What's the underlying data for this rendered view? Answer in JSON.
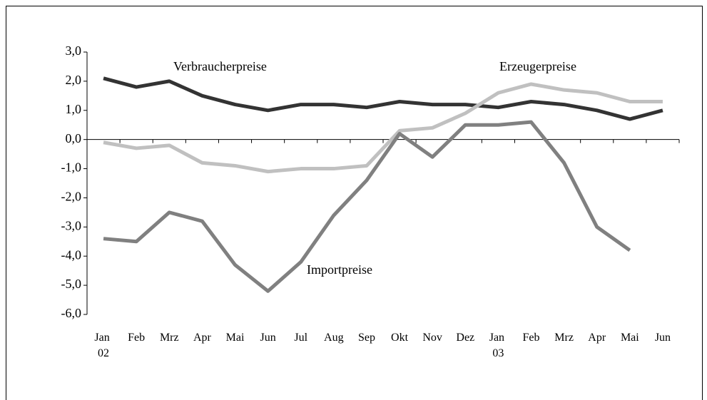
{
  "chart_data": {
    "type": "line",
    "categories": [
      "Jan 02",
      "Feb",
      "Mrz",
      "Apr",
      "Mai",
      "Jun",
      "Jul",
      "Aug",
      "Sep",
      "Okt",
      "Nov",
      "Dez",
      "Jan 03",
      "Feb",
      "Mrz",
      "Apr",
      "Mai",
      "Jun"
    ],
    "series": [
      {
        "name": "Verbraucherpreise",
        "color": "#333333",
        "values": [
          2.1,
          1.8,
          2.0,
          1.5,
          1.2,
          1.0,
          1.2,
          1.2,
          1.1,
          1.3,
          1.2,
          1.2,
          1.1,
          1.3,
          1.2,
          1.0,
          0.7,
          1.0
        ]
      },
      {
        "name": "Erzeugerpreise",
        "color": "#c0c0c0",
        "values": [
          -0.1,
          -0.3,
          -0.2,
          -0.8,
          -0.9,
          -1.1,
          -1.0,
          -1.0,
          -0.9,
          0.3,
          0.4,
          0.9,
          1.6,
          1.9,
          1.7,
          1.6,
          1.3,
          1.3
        ]
      },
      {
        "name": "Importpreise",
        "color": "#808080",
        "values": [
          -3.4,
          -3.5,
          -2.5,
          -2.8,
          -4.3,
          -5.2,
          -4.2,
          -2.6,
          -1.4,
          0.2,
          -0.6,
          0.5,
          0.5,
          0.6,
          -0.8,
          -3.0,
          -3.8,
          null
        ]
      }
    ],
    "ylim": [
      -6,
      3
    ],
    "yticks": [
      {
        "value": -6,
        "label": "-6,0"
      },
      {
        "value": -5,
        "label": "-5,0"
      },
      {
        "value": -4,
        "label": "-4,0"
      },
      {
        "value": -3,
        "label": "-3,0"
      },
      {
        "value": -2,
        "label": "-2,0"
      },
      {
        "value": -1,
        "label": "-1,0"
      },
      {
        "value": 0,
        "label": "0,0"
      },
      {
        "value": 1,
        "label": "1,0"
      },
      {
        "value": 2,
        "label": "2,0"
      },
      {
        "value": 3,
        "label": "3,0"
      }
    ],
    "grid": false
  }
}
